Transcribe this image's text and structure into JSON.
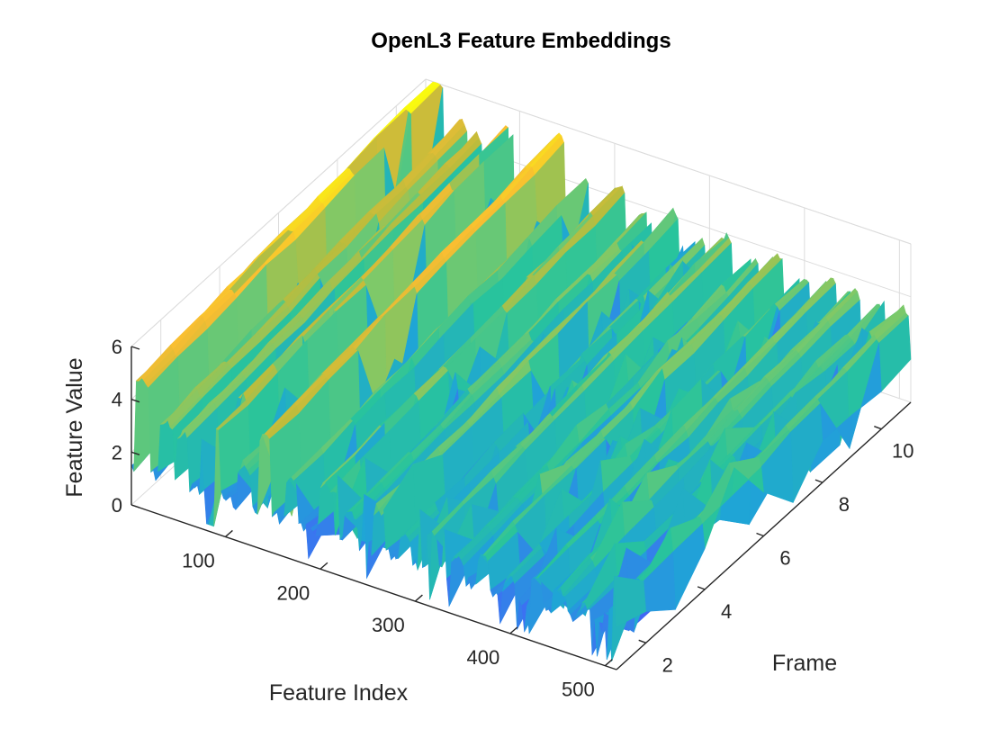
{
  "chart_data": {
    "type": "surface",
    "title": "OpenL3 Feature Embeddings",
    "xlabel": "Feature Index",
    "ylabel": "Frame",
    "zlabel": "Feature Value",
    "xlim": [
      1,
      512
    ],
    "ylim": [
      1,
      11
    ],
    "zlim": [
      0,
      6
    ],
    "xticks": [
      100,
      200,
      300,
      400,
      500
    ],
    "yticks": [
      2,
      4,
      6,
      8,
      10
    ],
    "zticks": [
      0,
      2,
      4,
      6
    ],
    "grid": true,
    "colormap": "parula",
    "colormap_colors": [
      "#3e26a8",
      "#4169f6",
      "#1fa5d6",
      "#28c49c",
      "#7cc96a",
      "#bcbc3c",
      "#f9bd32",
      "#f9fb0e"
    ],
    "ridges": [
      {
        "feature": 12,
        "value": 5.6
      },
      {
        "feature": 38,
        "value": 4.3
      },
      {
        "feature": 55,
        "value": 4.0
      },
      {
        "feature": 88,
        "value": 4.7
      },
      {
        "feature": 120,
        "value": 3.5
      },
      {
        "feature": 142,
        "value": 5.0
      },
      {
        "feature": 170,
        "value": 3.7
      },
      {
        "feature": 205,
        "value": 3.9
      },
      {
        "feature": 232,
        "value": 3.2
      },
      {
        "feature": 262,
        "value": 3.6
      },
      {
        "feature": 290,
        "value": 3.0
      },
      {
        "feature": 318,
        "value": 3.4
      },
      {
        "feature": 345,
        "value": 2.9
      },
      {
        "feature": 372,
        "value": 3.3
      },
      {
        "feature": 400,
        "value": 2.8
      },
      {
        "feature": 428,
        "value": 3.1
      },
      {
        "feature": 452,
        "value": 3.0
      },
      {
        "feature": 478,
        "value": 2.7
      },
      {
        "feature": 505,
        "value": 2.9
      }
    ]
  }
}
